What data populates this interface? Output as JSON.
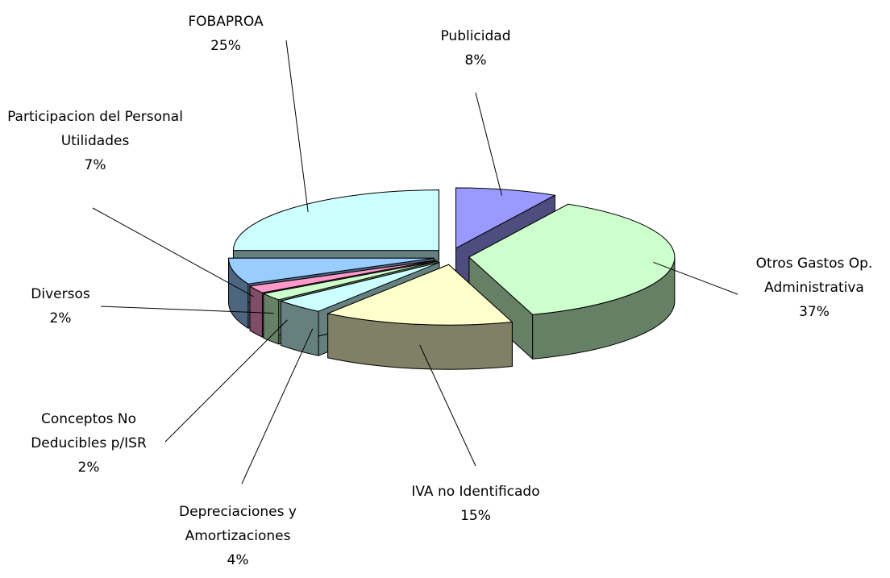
{
  "chart_data": {
    "type": "pie3d",
    "categories": [
      "Publicidad",
      "Otros Gastos Op. Administrativa",
      "IVA no Identificado",
      "Depreciaciones y Amortizaciones",
      "Conceptos No Deducibles p/ISR",
      "Diversos",
      "Participacion del Personal Utilidades",
      "FOBAPROA"
    ],
    "values": [
      8,
      37,
      15,
      4,
      2,
      2,
      7,
      25
    ],
    "value_labels": [
      "8%",
      "37%",
      "15%",
      "4%",
      "2%",
      "2%",
      "7%",
      "25%"
    ],
    "colors": [
      "#9999ff",
      "#ccffcc",
      "#ffffcc",
      "#ccffff",
      "#ccffcc",
      "#ff99cc",
      "#99ccff",
      "#ccffff"
    ]
  }
}
